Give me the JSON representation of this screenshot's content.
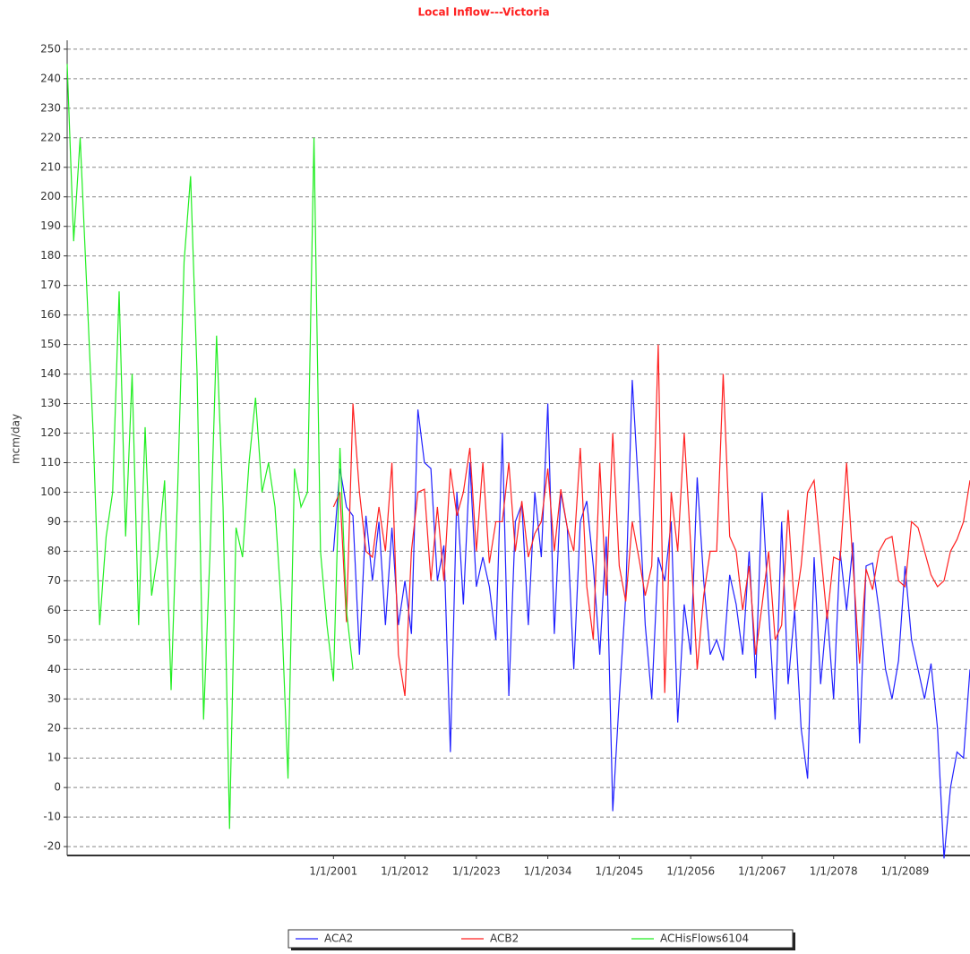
{
  "chart_data": {
    "type": "line",
    "title": "Local Inflow---Victoria",
    "y_label": "mcm/day",
    "xlim": [
      1960,
      2099
    ],
    "ylim": [
      -23,
      253
    ],
    "xticks": [
      {
        "value": 2001,
        "label": "1/1/2001"
      },
      {
        "value": 2012,
        "label": "1/1/2012"
      },
      {
        "value": 2023,
        "label": "1/1/2023"
      },
      {
        "value": 2034,
        "label": "1/1/2034"
      },
      {
        "value": 2045,
        "label": "1/1/2045"
      },
      {
        "value": 2056,
        "label": "1/1/2056"
      },
      {
        "value": 2067,
        "label": "1/1/2067"
      },
      {
        "value": 2078,
        "label": "1/1/2078"
      },
      {
        "value": 2089,
        "label": "1/1/2089"
      }
    ],
    "yticks": [
      -20,
      -10,
      0,
      10,
      20,
      30,
      40,
      50,
      60,
      70,
      80,
      90,
      100,
      110,
      120,
      130,
      140,
      150,
      160,
      170,
      180,
      190,
      200,
      210,
      220,
      230,
      240,
      250
    ],
    "grid": true,
    "legend": "bottom",
    "series": [
      {
        "name": "ACA2",
        "color": "#2020ff",
        "x": [
          2001,
          2002,
          2003,
          2004,
          2005,
          2006,
          2007,
          2008,
          2009,
          2010,
          2011,
          2012,
          2013,
          2014,
          2015,
          2016,
          2017,
          2018,
          2019,
          2020,
          2021,
          2022,
          2023,
          2024,
          2025,
          2026,
          2027,
          2028,
          2029,
          2030,
          2031,
          2032,
          2033,
          2034,
          2035,
          2036,
          2037,
          2038,
          2039,
          2040,
          2041,
          2042,
          2043,
          2044,
          2045,
          2046,
          2047,
          2048,
          2049,
          2050,
          2051,
          2052,
          2053,
          2054,
          2055,
          2056,
          2057,
          2058,
          2059,
          2060,
          2061,
          2062,
          2063,
          2064,
          2065,
          2066,
          2067,
          2068,
          2069,
          2070,
          2071,
          2072,
          2073,
          2074,
          2075,
          2076,
          2077,
          2078,
          2079,
          2080,
          2081,
          2082,
          2083,
          2084,
          2085,
          2086,
          2087,
          2088,
          2089,
          2090,
          2091,
          2092,
          2093,
          2094,
          2095,
          2096,
          2097,
          2098,
          2099
        ],
        "values": [
          80,
          108,
          95,
          92,
          45,
          92,
          70,
          90,
          55,
          88,
          55,
          70,
          52,
          128,
          110,
          108,
          70,
          82,
          12,
          100,
          62,
          110,
          68,
          78,
          68,
          50,
          120,
          31,
          90,
          96,
          55,
          100,
          78,
          130,
          52,
          100,
          88,
          40,
          90,
          97,
          75,
          45,
          85,
          -8,
          30,
          65,
          138,
          100,
          55,
          30,
          78,
          70,
          90,
          22,
          62,
          45,
          105,
          70,
          45,
          50,
          43,
          72,
          62,
          45,
          80,
          37,
          100,
          60,
          23,
          90,
          35,
          60,
          20,
          3,
          78,
          35,
          60,
          30,
          80,
          60,
          83,
          15,
          75,
          76,
          60,
          40,
          30,
          43,
          75,
          50,
          40,
          30,
          42,
          20,
          -24,
          0,
          12,
          10,
          40
        ]
      },
      {
        "name": "ACB2",
        "color": "#ff2020",
        "x": [
          2001,
          2002,
          2003,
          2004,
          2005,
          2006,
          2007,
          2008,
          2009,
          2010,
          2011,
          2012,
          2013,
          2014,
          2015,
          2016,
          2017,
          2018,
          2019,
          2020,
          2021,
          2022,
          2023,
          2024,
          2025,
          2026,
          2027,
          2028,
          2029,
          2030,
          2031,
          2032,
          2033,
          2034,
          2035,
          2036,
          2037,
          2038,
          2039,
          2040,
          2041,
          2042,
          2043,
          2044,
          2045,
          2046,
          2047,
          2048,
          2049,
          2050,
          2051,
          2052,
          2053,
          2054,
          2055,
          2056,
          2057,
          2058,
          2059,
          2060,
          2061,
          2062,
          2063,
          2064,
          2065,
          2066,
          2067,
          2068,
          2069,
          2070,
          2071,
          2072,
          2073,
          2074,
          2075,
          2076,
          2077,
          2078,
          2079,
          2080,
          2081,
          2082,
          2083,
          2084,
          2085,
          2086,
          2087,
          2088,
          2089,
          2090,
          2091,
          2092,
          2093,
          2094,
          2095,
          2096,
          2097,
          2098,
          2099
        ],
        "values": [
          95,
          100,
          56,
          130,
          100,
          80,
          78,
          95,
          80,
          110,
          45,
          31,
          80,
          100,
          101,
          70,
          95,
          70,
          108,
          92,
          100,
          115,
          80,
          110,
          76,
          90,
          90,
          110,
          80,
          97,
          78,
          86,
          90,
          108,
          80,
          101,
          88,
          80,
          115,
          68,
          50,
          110,
          65,
          120,
          75,
          63,
          90,
          78,
          65,
          75,
          150,
          32,
          100,
          80,
          120,
          82,
          40,
          65,
          80,
          80,
          140,
          85,
          80,
          60,
          75,
          45,
          62,
          80,
          50,
          55,
          94,
          60,
          75,
          100,
          104,
          80,
          57,
          78,
          77,
          110,
          75,
          42,
          74,
          67,
          80,
          84,
          85,
          70,
          68,
          90,
          88,
          80,
          72,
          68,
          70,
          80,
          84,
          90,
          104
        ]
      },
      {
        "name": "ACHisFlows6104",
        "color": "#20ee20",
        "x": [
          1960,
          1961,
          1962,
          1963,
          1964,
          1965,
          1966,
          1967,
          1968,
          1969,
          1970,
          1971,
          1972,
          1973,
          1974,
          1975,
          1976,
          1977,
          1978,
          1979,
          1980,
          1981,
          1982,
          1983,
          1984,
          1985,
          1986,
          1987,
          1988,
          1989,
          1990,
          1991,
          1992,
          1993,
          1994,
          1995,
          1996,
          1997,
          1998,
          1999,
          2000,
          2001,
          2002,
          2003,
          2004
        ],
        "values": [
          245,
          185,
          220,
          170,
          120,
          55,
          85,
          100,
          168,
          85,
          140,
          55,
          122,
          65,
          80,
          104,
          33,
          100,
          178,
          207,
          140,
          23,
          80,
          153,
          95,
          -14,
          88,
          78,
          110,
          132,
          100,
          110,
          95,
          60,
          3,
          108,
          95,
          100,
          220,
          80,
          55,
          36,
          115,
          60,
          40
        ]
      }
    ]
  }
}
